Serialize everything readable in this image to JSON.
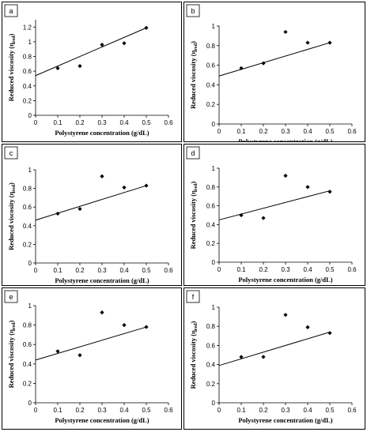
{
  "chart_data": [
    {
      "panel_label": "a",
      "type": "scatter",
      "xlabel": "Polystyrene concentration (g/dL)",
      "ylabel_main": "Reduced viscosity (η",
      "ylabel_sub": "red",
      "ylabel_end": ")",
      "xlim": [
        0,
        0.6
      ],
      "ylim": [
        0,
        1.3
      ],
      "xticks": [
        0,
        0.1,
        0.2,
        0.3,
        0.4,
        0.5,
        0.6
      ],
      "yticks": [
        0,
        0.2,
        0.4,
        0.6,
        0.8,
        1,
        1.2
      ],
      "xtick_labels": [
        "0",
        "0.1",
        "0.2",
        "0.3",
        "0.4",
        "0.5",
        "0.6"
      ],
      "ytick_labels": [
        "0",
        "0.2",
        "0.4",
        "0.6",
        "0.8",
        "1",
        "1.2"
      ],
      "points": [
        {
          "x": 0.1,
          "y": 0.64
        },
        {
          "x": 0.2,
          "y": 0.67
        },
        {
          "x": 0.3,
          "y": 0.96
        },
        {
          "x": 0.4,
          "y": 0.98
        },
        {
          "x": 0.5,
          "y": 1.19
        }
      ],
      "trendline": {
        "x": [
          0,
          0.5
        ],
        "y": [
          0.54,
          1.19
        ]
      }
    },
    {
      "panel_label": "b",
      "type": "scatter",
      "xlabel": "Polystyrene concentration (g/dL)",
      "ylabel_main": "Reduced viscosity (η",
      "ylabel_sub": "red",
      "ylabel_end": ")",
      "xlim": [
        0,
        0.6
      ],
      "ylim": [
        0,
        1
      ],
      "xticks": [
        0,
        0.1,
        0.2,
        0.3,
        0.4,
        0.5,
        0.6
      ],
      "yticks": [
        0,
        0.2,
        0.4,
        0.6,
        0.8,
        1
      ],
      "xtick_labels": [
        "0",
        "0.1",
        "0.2",
        "0.3",
        "0.4",
        "0.5",
        "0.6"
      ],
      "ytick_labels": [
        "0",
        "0.2",
        "0.4",
        "0.6",
        "0.8",
        "1"
      ],
      "points": [
        {
          "x": 0.1,
          "y": 0.57
        },
        {
          "x": 0.2,
          "y": 0.62
        },
        {
          "x": 0.3,
          "y": 0.94
        },
        {
          "x": 0.4,
          "y": 0.83
        },
        {
          "x": 0.5,
          "y": 0.83
        }
      ],
      "trendline": {
        "x": [
          0,
          0.5
        ],
        "y": [
          0.49,
          0.83
        ]
      }
    },
    {
      "panel_label": "c",
      "type": "scatter",
      "xlabel": "Polystyrene concentration (g/dL)",
      "ylabel_main": "Reduced viscosity (η",
      "ylabel_sub": "red",
      "ylabel_end": ")",
      "xlim": [
        0,
        0.6
      ],
      "ylim": [
        0,
        1
      ],
      "xticks": [
        0,
        0.1,
        0.2,
        0.3,
        0.4,
        0.5,
        0.6
      ],
      "yticks": [
        0,
        0.2,
        0.4,
        0.6,
        0.8,
        1
      ],
      "xtick_labels": [
        "0",
        "0.1",
        "0.2",
        "0.3",
        "0.4",
        "0.5",
        "0.6"
      ],
      "ytick_labels": [
        "0",
        "0.2",
        "0.4",
        "0.6",
        "0.8",
        "1"
      ],
      "points": [
        {
          "x": 0.1,
          "y": 0.53
        },
        {
          "x": 0.2,
          "y": 0.58
        },
        {
          "x": 0.3,
          "y": 0.93
        },
        {
          "x": 0.4,
          "y": 0.81
        },
        {
          "x": 0.5,
          "y": 0.83
        }
      ],
      "trendline": {
        "x": [
          0,
          0.5
        ],
        "y": [
          0.46,
          0.83
        ]
      }
    },
    {
      "panel_label": "d",
      "type": "scatter",
      "xlabel": "Polystyrene concentration (g/dL)",
      "ylabel_main": "Reduced viscosity (η",
      "ylabel_sub": "red",
      "ylabel_end": ")",
      "xlim": [
        0,
        0.6
      ],
      "ylim": [
        0,
        1
      ],
      "xticks": [
        0,
        0.1,
        0.2,
        0.3,
        0.4,
        0.5,
        0.6
      ],
      "yticks": [
        0,
        0.2,
        0.4,
        0.6,
        0.8,
        1
      ],
      "xtick_labels": [
        "0",
        "0.1",
        "0.2",
        "0.3",
        "0.4",
        "0.5",
        "0.6"
      ],
      "ytick_labels": [
        "0",
        "0.2",
        "0.4",
        "0.6",
        "0.8",
        "1"
      ],
      "points": [
        {
          "x": 0.1,
          "y": 0.5
        },
        {
          "x": 0.2,
          "y": 0.47
        },
        {
          "x": 0.3,
          "y": 0.92
        },
        {
          "x": 0.4,
          "y": 0.8
        },
        {
          "x": 0.5,
          "y": 0.75
        }
      ],
      "trendline": {
        "x": [
          0,
          0.5
        ],
        "y": [
          0.45,
          0.76
        ]
      }
    },
    {
      "panel_label": "e",
      "type": "scatter",
      "xlabel": "Polystyrene concentration (g/dL)",
      "ylabel_main": "Reduced viscosity (η",
      "ylabel_sub": "red",
      "ylabel_end": ")",
      "xlim": [
        0,
        0.6
      ],
      "ylim": [
        0,
        1
      ],
      "xticks": [
        0,
        0.1,
        0.2,
        0.3,
        0.4,
        0.5,
        0.6
      ],
      "yticks": [
        0,
        0.2,
        0.4,
        0.6,
        0.8,
        1
      ],
      "xtick_labels": [
        "0",
        "0.1",
        "0.2",
        "0.3",
        "0.4",
        "0.5",
        "0.6"
      ],
      "ytick_labels": [
        "0",
        "0.2",
        "0.4",
        "0.6",
        "0.8",
        "1"
      ],
      "points": [
        {
          "x": 0.1,
          "y": 0.53
        },
        {
          "x": 0.2,
          "y": 0.49
        },
        {
          "x": 0.3,
          "y": 0.93
        },
        {
          "x": 0.4,
          "y": 0.8
        },
        {
          "x": 0.5,
          "y": 0.78
        }
      ],
      "trendline": {
        "x": [
          0,
          0.5
        ],
        "y": [
          0.44,
          0.78
        ]
      }
    },
    {
      "panel_label": "f",
      "type": "scatter",
      "xlabel": "Polystyrene concentration (g/dL)",
      "ylabel_main": "Reduced viscosity (η",
      "ylabel_sub": "red",
      "ylabel_end": ")",
      "xlim": [
        0,
        0.6
      ],
      "ylim": [
        0,
        1
      ],
      "xticks": [
        0,
        0.1,
        0.2,
        0.3,
        0.4,
        0.5,
        0.6
      ],
      "yticks": [
        0,
        0.2,
        0.4,
        0.6,
        0.8,
        1
      ],
      "xtick_labels": [
        "0",
        "0.1",
        "0.2",
        "0.3",
        "0.4",
        "0.5",
        "0.6"
      ],
      "ytick_labels": [
        "0",
        "0.2",
        "0.4",
        "0.6",
        "0.8",
        "1"
      ],
      "points": [
        {
          "x": 0.1,
          "y": 0.48
        },
        {
          "x": 0.2,
          "y": 0.48
        },
        {
          "x": 0.3,
          "y": 0.92
        },
        {
          "x": 0.4,
          "y": 0.79
        },
        {
          "x": 0.5,
          "y": 0.73
        }
      ],
      "trendline": {
        "x": [
          0,
          0.5
        ],
        "y": [
          0.39,
          0.74
        ]
      }
    }
  ]
}
